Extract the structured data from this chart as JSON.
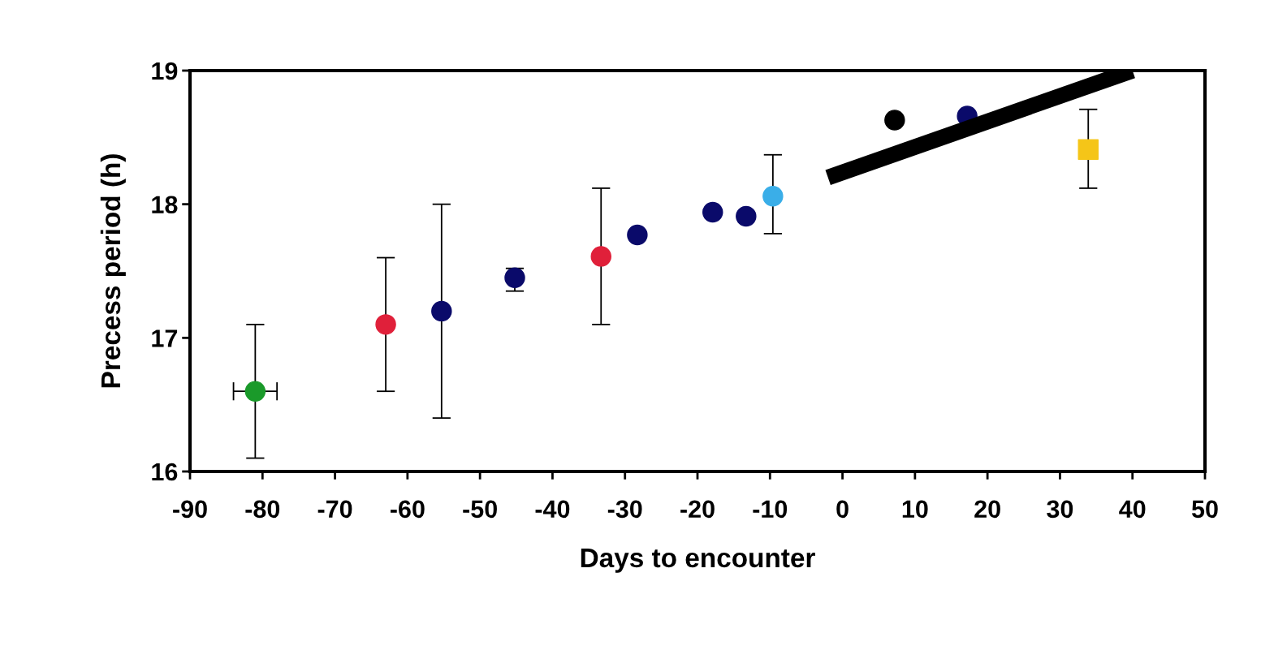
{
  "chart_data": {
    "type": "scatter",
    "xlabel": "Days to encounter",
    "ylabel": "Precess period (h)",
    "xlim": [
      -90,
      50
    ],
    "xticks": [
      -90,
      -80,
      -70,
      -60,
      -50,
      -40,
      -30,
      -20,
      -10,
      0,
      10,
      20,
      30,
      40,
      50
    ],
    "ylim": [
      16,
      19
    ],
    "yticks": [
      16,
      17,
      18,
      19
    ],
    "grid": false,
    "legend": false,
    "series": [
      {
        "marker": "circle",
        "x": [
          -81,
          -63,
          -55.3,
          -45.2,
          -33.3,
          -28.3,
          -17.9,
          -13.3,
          -9.6,
          7.2,
          17.2
        ],
        "values": [
          16.6,
          17.1,
          17.2,
          17.45,
          17.61,
          17.77,
          17.94,
          17.91,
          18.06,
          18.63,
          18.66
        ],
        "colors": [
          "#1a9a2a",
          "#e0203a",
          "#0a0a6a",
          "#0a0a6a",
          "#e0203a",
          "#0a0a6a",
          "#0a0a6a",
          "#0a0a6a",
          "#3aaee8",
          "#000000",
          "#0a0a6a"
        ],
        "errors": [
          [
            16.1,
            17.1
          ],
          [
            16.6,
            17.6
          ],
          [
            16.4,
            18.0
          ],
          [
            17.35,
            17.52
          ],
          [
            17.1,
            18.12
          ],
          null,
          null,
          null,
          [
            17.78,
            18.37
          ],
          null,
          null
        ],
        "xerrors": [
          3,
          null,
          null,
          null,
          null,
          null,
          null,
          null,
          null,
          null,
          null
        ]
      },
      {
        "marker": "square",
        "color": "#f5c518",
        "x": [
          33.9
        ],
        "values": [
          18.41
        ],
        "errors": [
          [
            18.12,
            18.71
          ]
        ]
      },
      {
        "type": "line",
        "color": "#000000",
        "x": [
          -2,
          40
        ],
        "values": [
          18.2,
          19.0
        ]
      }
    ]
  }
}
